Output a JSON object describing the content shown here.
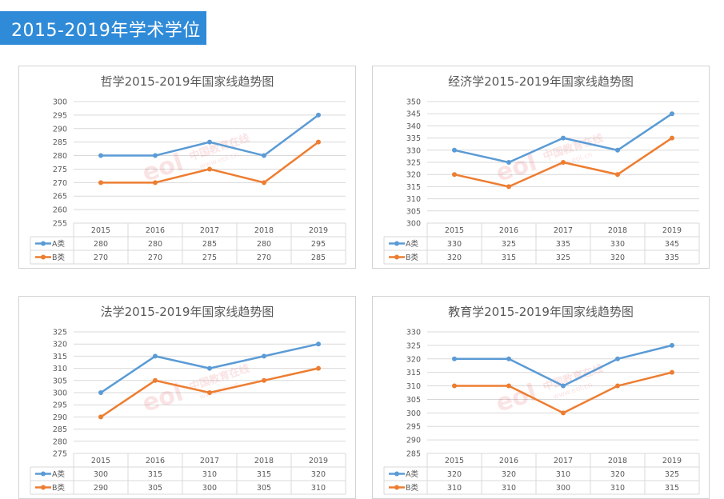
{
  "header": {
    "title": "2015-2019年学术学位"
  },
  "colors": {
    "header_bg": "#2f8bd8",
    "series_a": "#5b9bd5",
    "series_b": "#ed7d31",
    "grid": "#d9d9d9",
    "text": "#595959"
  },
  "watermark": {
    "text": "中国教育在线",
    "subtext": "www.eol.cn"
  },
  "chart_data": [
    {
      "type": "line",
      "title": "哲学2015-2019年国家线趋势图",
      "categories": [
        "2015",
        "2016",
        "2017",
        "2018",
        "2019"
      ],
      "ylim": [
        255,
        300
      ],
      "ystep": 5,
      "yticks": [
        "300",
        "295",
        "290",
        "285",
        "280",
        "275",
        "270",
        "265",
        "260",
        "255"
      ],
      "series": [
        {
          "name": "A类",
          "values": [
            280,
            280,
            285,
            280,
            295
          ]
        },
        {
          "name": "B类",
          "values": [
            270,
            270,
            275,
            270,
            285
          ]
        }
      ],
      "grid": true,
      "legend": "data-table"
    },
    {
      "type": "line",
      "title": "经济学2015-2019年国家线趋势图",
      "categories": [
        "2015",
        "2016",
        "2017",
        "2018",
        "2019"
      ],
      "ylim": [
        300,
        350
      ],
      "ystep": 5,
      "yticks": [
        "350",
        "345",
        "340",
        "335",
        "330",
        "325",
        "320",
        "315",
        "310",
        "305",
        "300"
      ],
      "series": [
        {
          "name": "A类",
          "values": [
            330,
            325,
            335,
            330,
            345
          ]
        },
        {
          "name": "B类",
          "values": [
            320,
            315,
            325,
            320,
            335
          ]
        }
      ],
      "grid": true,
      "legend": "data-table"
    },
    {
      "type": "line",
      "title": "法学2015-2019年国家线趋势图",
      "categories": [
        "2015",
        "2016",
        "2017",
        "2018",
        "2019"
      ],
      "ylim": [
        275,
        325
      ],
      "ystep": 5,
      "yticks": [
        "325",
        "320",
        "315",
        "310",
        "305",
        "300",
        "295",
        "290",
        "285",
        "280",
        "275"
      ],
      "series": [
        {
          "name": "A类",
          "values": [
            300,
            315,
            310,
            315,
            320
          ]
        },
        {
          "name": "B类",
          "values": [
            290,
            305,
            300,
            305,
            310
          ]
        }
      ],
      "grid": true,
      "legend": "data-table"
    },
    {
      "type": "line",
      "title": "教育学2015-2019年国家线趋势图",
      "categories": [
        "2015",
        "2016",
        "2017",
        "2018",
        "2019"
      ],
      "ylim": [
        285,
        330
      ],
      "ystep": 5,
      "yticks": [
        "330",
        "325",
        "320",
        "315",
        "310",
        "305",
        "300",
        "295",
        "290",
        "285"
      ],
      "series": [
        {
          "name": "A类",
          "values": [
            320,
            320,
            310,
            320,
            325
          ]
        },
        {
          "name": "B类",
          "values": [
            310,
            310,
            300,
            310,
            315
          ]
        }
      ],
      "grid": true,
      "legend": "data-table"
    }
  ]
}
